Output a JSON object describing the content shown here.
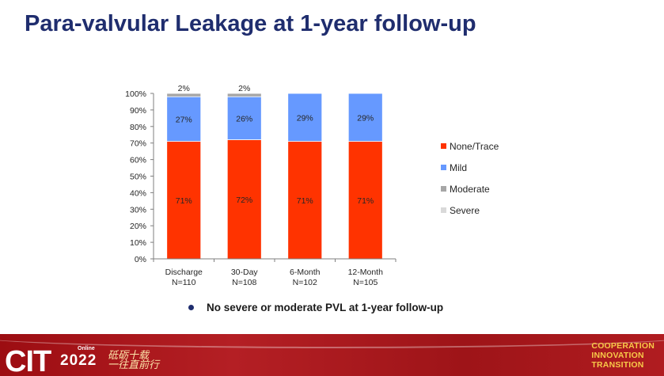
{
  "title": "Para-valvular Leakage at 1-year follow-up",
  "chart_data": {
    "type": "bar",
    "stacked": true,
    "title": "",
    "xlabel": "",
    "ylabel": "",
    "ylim": [
      0,
      100
    ],
    "categories": [
      "Discharge\nN=110",
      "30-Day\nN=108",
      "6-Month\nN=102",
      "12-Month\nN=105"
    ],
    "category_lines": [
      [
        "Discharge",
        "N=110"
      ],
      [
        "30-Day",
        "N=108"
      ],
      [
        "6-Month",
        "N=102"
      ],
      [
        "12-Month",
        "N=105"
      ]
    ],
    "yticks": [
      0,
      10,
      20,
      30,
      40,
      50,
      60,
      70,
      80,
      90,
      100
    ],
    "ytick_labels": [
      "0%",
      "10%",
      "20%",
      "30%",
      "40%",
      "50%",
      "60%",
      "70%",
      "80%",
      "90%",
      "100%"
    ],
    "series": [
      {
        "name": "None/Trace",
        "color": "#ff3300",
        "values": [
          71,
          72,
          71,
          71
        ],
        "labels": [
          "71%",
          "72%",
          "71%",
          "71%"
        ]
      },
      {
        "name": "Mild",
        "color": "#6699ff",
        "values": [
          27,
          26,
          29,
          29
        ],
        "labels": [
          "27%",
          "26%",
          "29%",
          "29%"
        ]
      },
      {
        "name": "Moderate",
        "color": "#a6a6a6",
        "values": [
          2,
          2,
          0,
          0
        ],
        "labels": [
          "2%",
          "2%",
          "",
          ""
        ]
      },
      {
        "name": "Severe",
        "color": "#d9d9d9",
        "values": [
          0,
          0,
          0,
          0
        ],
        "labels": [
          "",
          "",
          "",
          ""
        ]
      }
    ],
    "legend": [
      "None/Trace",
      "Mild",
      "Moderate",
      "Severe"
    ],
    "legend_position": "right"
  },
  "bullet": "No severe or moderate PVL at 1-year follow-up",
  "footer": {
    "logo_text": "CIT",
    "online_label": "Online",
    "year": "2022",
    "slogan_line1": "砥砺十载",
    "slogan_line2": "一往直前行",
    "tagline_1": "COOPERATION",
    "tagline_2": "INNOVATION",
    "tagline_3": "TRANSITION"
  },
  "colors": {
    "title": "#1f2d6e",
    "footer_red": "#a3121a",
    "accent_gold": "#f7c948"
  }
}
